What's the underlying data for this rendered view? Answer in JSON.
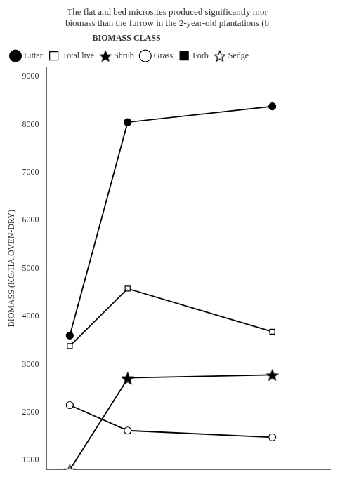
{
  "chart_data": {
    "type": "line",
    "title": "The flat and bed microsites produced significantly mor\nbiomass than the furrow in the 2-year-old plantations (b",
    "y_label": "BIOMASS (KG/HA,OVEN-DRY)",
    "legend_title": "BIOMASS CLASS",
    "x": [
      2,
      4,
      9
    ],
    "series": [
      {
        "name": "Litter",
        "color": "#000000",
        "marker": "filled_circle",
        "values": [
          3600,
          8050,
          8380
        ]
      },
      {
        "name": "Total live",
        "color": "#000000",
        "marker": "open_square",
        "values": [
          3380,
          4580,
          3680
        ]
      },
      {
        "name": "Shrub",
        "color": "#000000",
        "marker": "filled_star",
        "values": [
          null,
          2720,
          2780
        ]
      },
      {
        "name": "Grass",
        "color": "#000000",
        "marker": "open_circle",
        "values": [
          2150,
          1620,
          1480
        ]
      },
      {
        "name": "Forb",
        "color": "#000000",
        "marker": "filled_square",
        "values": [
          null,
          null,
          null
        ]
      },
      {
        "name": "Sedge",
        "color": "#000000",
        "marker": "open_star",
        "values": [
          800,
          2700,
          null
        ]
      }
    ],
    "xlim": [
      1.2,
      11.0
    ],
    "ylim": [
      800,
      9200
    ],
    "yticks": [
      1000,
      2000,
      3000,
      4000,
      5000,
      6000,
      7000,
      8000,
      9000
    ],
    "tick_labels": "y",
    "grid": false,
    "legend": "upper left"
  }
}
